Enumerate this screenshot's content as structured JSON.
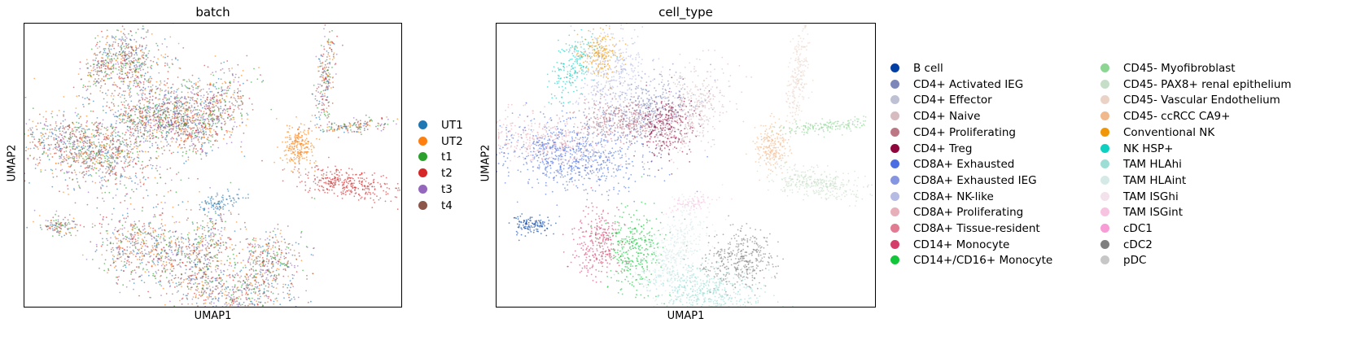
{
  "panels": [
    {
      "title": "batch",
      "xlabel": "UMAP1",
      "ylabel": "UMAP2",
      "legend": [
        {
          "label": "UT1",
          "color": "#1f77b4"
        },
        {
          "label": "UT2",
          "color": "#ff7f0e"
        },
        {
          "label": "t1",
          "color": "#2ca02c"
        },
        {
          "label": "t2",
          "color": "#d62728"
        },
        {
          "label": "t3",
          "color": "#9467bd"
        },
        {
          "label": "t4",
          "color": "#8c564b"
        }
      ]
    },
    {
      "title": "cell_type",
      "xlabel": "UMAP1",
      "ylabel": "UMAP2",
      "legend": [
        {
          "label": "B cell",
          "color": "#023fa5"
        },
        {
          "label": "CD4+ Activated IEG",
          "color": "#7d87b9"
        },
        {
          "label": "CD4+ Effector",
          "color": "#bec1d4"
        },
        {
          "label": "CD4+ Naive",
          "color": "#d6bcc0"
        },
        {
          "label": "CD4+ Proliferating",
          "color": "#bb7784"
        },
        {
          "label": "CD4+ Treg",
          "color": "#8e063b"
        },
        {
          "label": "CD8A+ Exhausted",
          "color": "#4a6fe3"
        },
        {
          "label": "CD8A+ Exhausted IEG",
          "color": "#8595e1"
        },
        {
          "label": "CD8A+ NK-like",
          "color": "#b5bbe3"
        },
        {
          "label": "CD8A+ Proliferating",
          "color": "#e6afb9"
        },
        {
          "label": "CD8A+ Tissue-resident",
          "color": "#e07b91"
        },
        {
          "label": "CD14+ Monocyte",
          "color": "#d33f6a"
        },
        {
          "label": "CD14+/CD16+ Monocyte",
          "color": "#11c638"
        },
        {
          "label": "CD45- Myofibroblast",
          "color": "#8dd593"
        },
        {
          "label": "CD45- PAX8+ renal epithelium",
          "color": "#c6dec7"
        },
        {
          "label": "CD45- Vascular Endothelium",
          "color": "#ead3c6"
        },
        {
          "label": "CD45- ccRCC CA9+",
          "color": "#f0b98d"
        },
        {
          "label": "Conventional NK",
          "color": "#ef9708"
        },
        {
          "label": "NK HSP+",
          "color": "#0fcfc0"
        },
        {
          "label": "TAM HLAhi",
          "color": "#9cded6"
        },
        {
          "label": "TAM HLAint",
          "color": "#d5eae7"
        },
        {
          "label": "TAM ISGhi",
          "color": "#f3e1eb"
        },
        {
          "label": "TAM ISGint",
          "color": "#f6c4e1"
        },
        {
          "label": "cDC1",
          "color": "#f79cd4"
        },
        {
          "label": "cDC2",
          "color": "#7f7f7f"
        },
        {
          "label": "pDC",
          "color": "#c7c7c7"
        }
      ]
    }
  ]
}
